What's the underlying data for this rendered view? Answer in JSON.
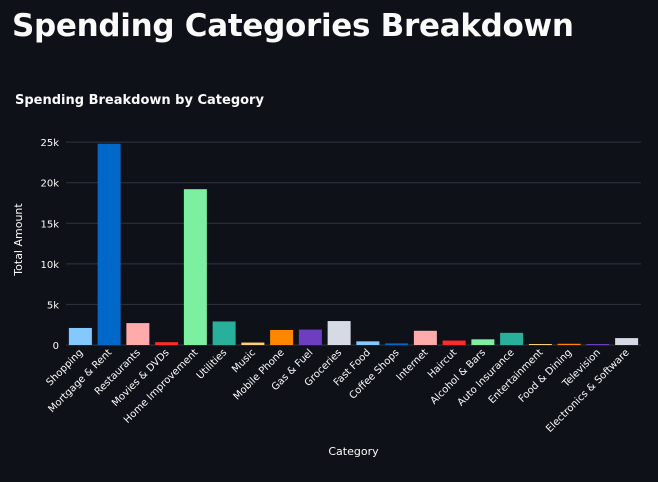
{
  "page": {
    "title": "Spending Categories Breakdown"
  },
  "chart_data": {
    "type": "bar",
    "title": "Spending Breakdown by Category",
    "xlabel": "Category",
    "ylabel": "Total Amount",
    "ylim": [
      0,
      26000
    ],
    "yticks": [
      0,
      5000,
      10000,
      15000,
      20000,
      25000
    ],
    "ytick_labels": [
      "0",
      "5k",
      "10k",
      "15k",
      "20k",
      "25k"
    ],
    "grid": true,
    "categories": [
      "Shopping",
      "Mortgage & Rent",
      "Restaurants",
      "Movies & DVDs",
      "Home Improvement",
      "Utilities",
      "Music",
      "Mobile Phone",
      "Gas & Fuel",
      "Groceries",
      "Fast Food",
      "Coffee Shops",
      "Internet",
      "Haircut",
      "Alcohol & Bars",
      "Auto Insurance",
      "Entertainment",
      "Food & Dining",
      "Television",
      "Electronics & Software"
    ],
    "values": [
      2100,
      24800,
      2700,
      350,
      19200,
      2900,
      300,
      1850,
      1900,
      2950,
      450,
      200,
      1750,
      550,
      700,
      1500,
      100,
      150,
      120,
      850
    ],
    "colors": [
      "#83c9ff",
      "#0068c9",
      "#ffabab",
      "#ff2b2b",
      "#7defa1",
      "#29b09d",
      "#ffd16a",
      "#ff8700",
      "#6d3fc0",
      "#d5dae5",
      "#83c9ff",
      "#0068c9",
      "#ffabab",
      "#ff2b2b",
      "#7defa1",
      "#29b09d",
      "#ffd16a",
      "#ff8700",
      "#6d3fc0",
      "#d5dae5"
    ]
  }
}
